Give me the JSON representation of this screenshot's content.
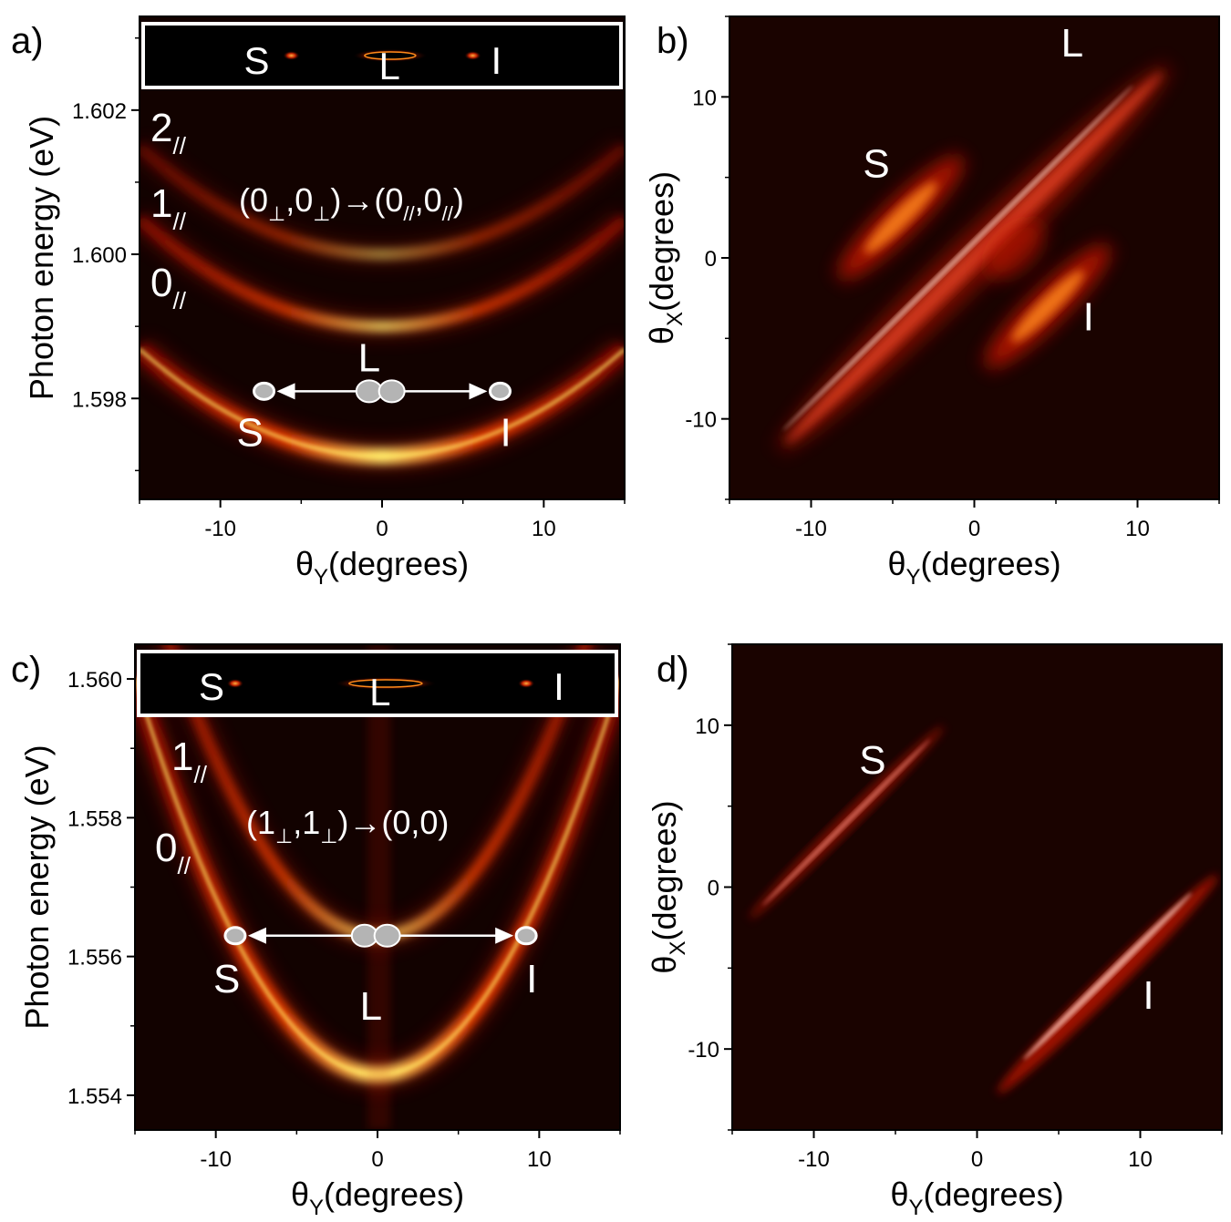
{
  "chart_data": [
    {
      "panel": "a)",
      "type": "heatmap",
      "xlabel": {
        "main": "θ",
        "sub": "Y",
        "rest": "(degrees)"
      },
      "ylabel": "Photon energy (eV)",
      "xlim": [
        -15,
        15
      ],
      "ylim": [
        1.5966,
        1.6033
      ],
      "xticks": [
        -10,
        0,
        10
      ],
      "yticks": [
        1.598,
        1.6,
        1.602
      ],
      "ytick_labels": [
        "1.598",
        "1.600",
        "1.602"
      ],
      "curvature": 6.6e-06,
      "branches": [
        {
          "label": "0",
          "sub": "//",
          "e0": 1.5972
        },
        {
          "label": "1",
          "sub": "//",
          "e0": 1.599
        },
        {
          "label": "2",
          "sub": "//",
          "e0": 1.6
        }
      ],
      "transition": {
        "parts": [
          "(0",
          "⊥",
          ",0",
          "⊥",
          ")→(0",
          "//",
          ",0",
          "//",
          ")"
        ]
      },
      "pump": {
        "energy": 1.5981,
        "signal_angle": -7.3,
        "idler_angle": 7.3,
        "labels": {
          "signal": "S",
          "laser": "L",
          "idler": "I"
        }
      },
      "inset": {
        "labels": [
          "S",
          "L",
          "I"
        ]
      }
    },
    {
      "panel": "b)",
      "type": "heatmap",
      "xlabel": {
        "main": "θ",
        "sub": "Y",
        "rest": "(degrees)"
      },
      "ylabel": {
        "main": "θ",
        "sub": "X",
        "rest": "(degrees)"
      },
      "xlim": [
        -15,
        15
      ],
      "ylim": [
        -15,
        15
      ],
      "xticks": [
        -10,
        0,
        10
      ],
      "yticks": [
        -10,
        0,
        10
      ],
      "labels": [
        {
          "text": "L",
          "x": 6,
          "y": 12.5
        },
        {
          "text": "S",
          "x": -6,
          "y": 5
        },
        {
          "text": "I",
          "x": 7,
          "y": -4.5
        }
      ]
    },
    {
      "panel": "c)",
      "type": "heatmap",
      "xlabel": {
        "main": "θ",
        "sub": "Y",
        "rest": "(degrees)"
      },
      "ylabel": "Photon energy (eV)",
      "xlim": [
        -15,
        15
      ],
      "ylim": [
        1.5535,
        1.5605
      ],
      "xticks": [
        -10,
        0,
        10
      ],
      "yticks": [
        1.554,
        1.556,
        1.558,
        1.56
      ],
      "ytick_labels": [
        "1.554",
        "1.556",
        "1.558",
        "1.560"
      ],
      "curvature": 2.54e-05,
      "branches": [
        {
          "label": "0",
          "sub": "//",
          "e0": 1.5543
        },
        {
          "label": "1",
          "sub": "//",
          "e0": 1.5563
        }
      ],
      "transition": {
        "parts": [
          "(1",
          "⊥",
          ",1",
          "⊥",
          ")→(0,0)"
        ]
      },
      "pump": {
        "energy": 1.5563,
        "signal_angle": -8.8,
        "idler_angle": 9.2,
        "labels": {
          "signal": "S",
          "laser": "L",
          "idler": "I"
        }
      },
      "inset": {
        "labels": [
          "S",
          "L",
          "I"
        ]
      }
    },
    {
      "panel": "d)",
      "type": "heatmap",
      "xlabel": {
        "main": "θ",
        "sub": "Y",
        "rest": "(degrees)"
      },
      "ylabel": {
        "main": "θ",
        "sub": "X",
        "rest": "(degrees)"
      },
      "xlim": [
        -15,
        15
      ],
      "ylim": [
        -15,
        15
      ],
      "xticks": [
        -10,
        0,
        10
      ],
      "yticks": [
        -10,
        0,
        10
      ],
      "labels": [
        {
          "text": "S",
          "x": -6.4,
          "y": 7
        },
        {
          "text": "I",
          "x": 10.5,
          "y": -7.5
        }
      ]
    }
  ],
  "colors": {
    "background": "#120200",
    "red": "#c81400",
    "orange": "#ff8a1a",
    "yellow": "#ffee66",
    "white": "#ffffff",
    "marker_gray": "#b4b4b4"
  }
}
